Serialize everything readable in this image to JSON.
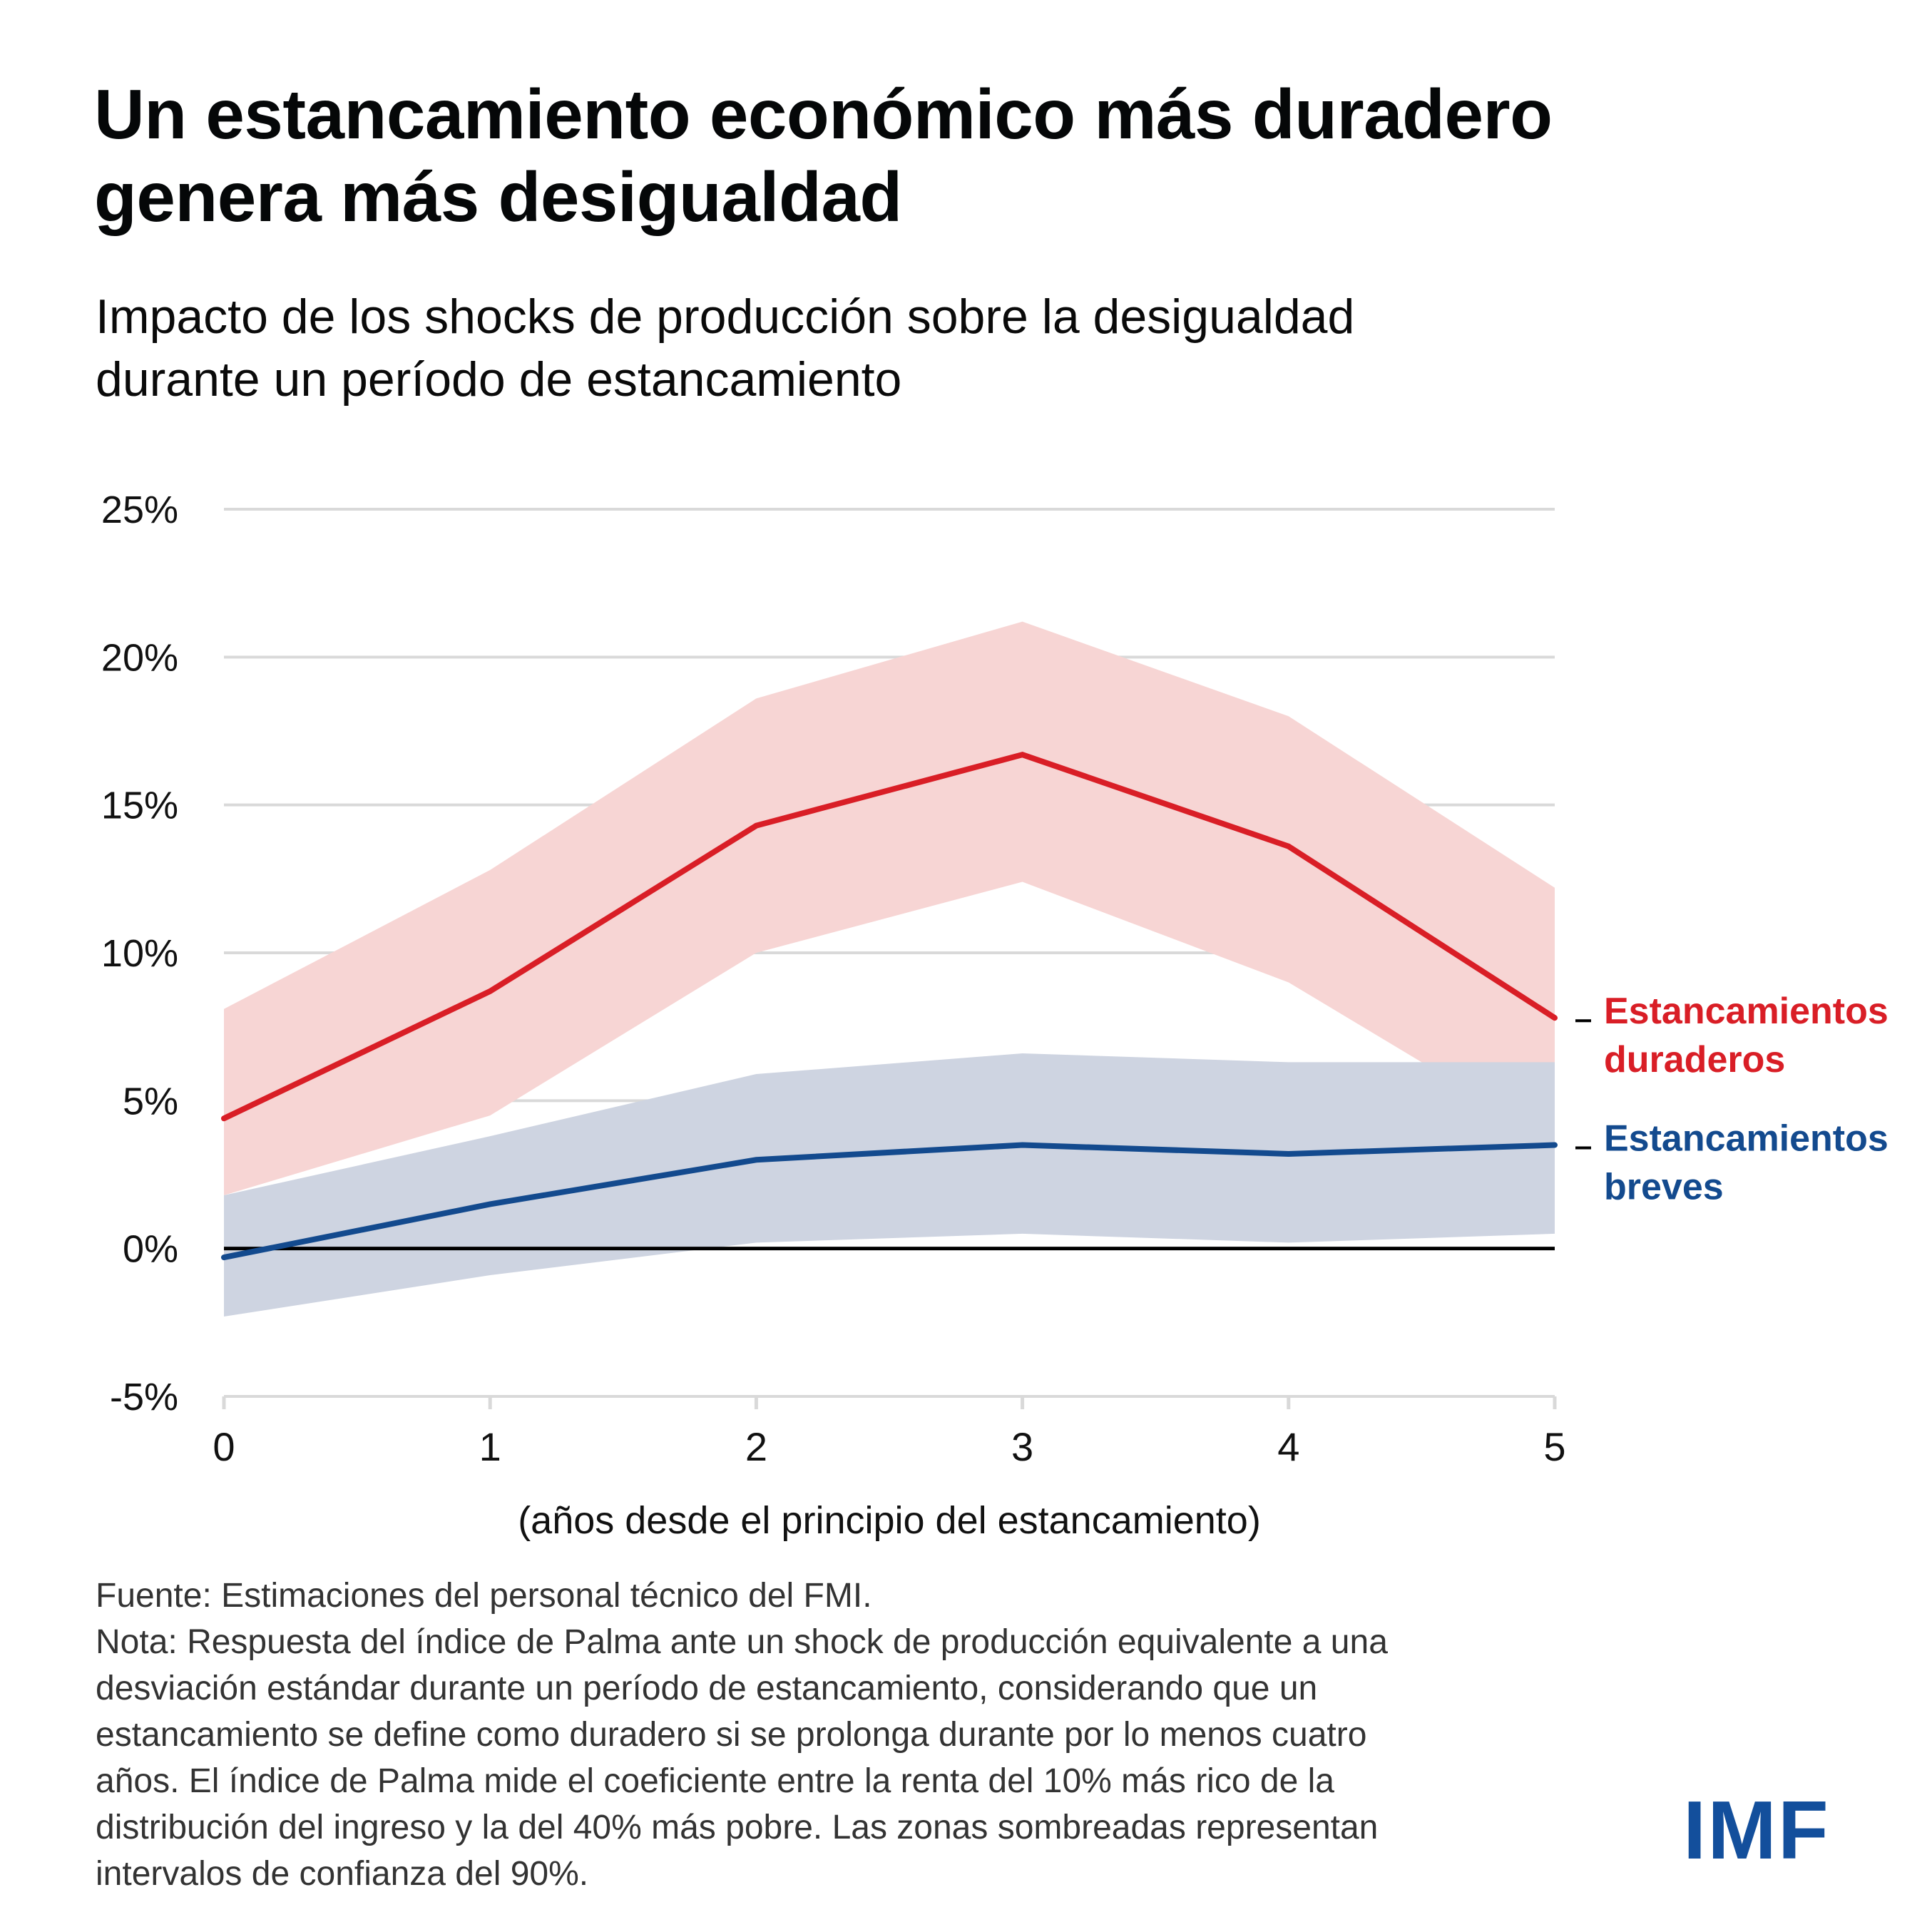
{
  "header": {
    "title_lines": [
      "Un estancamiento económico más duradero",
      "genera más desigualdad"
    ],
    "subtitle_lines": [
      "Impacto de los shocks de producción sobre la desigualdad",
      "durante un período de estancamiento"
    ]
  },
  "colors": {
    "long_line": "#D91E26",
    "long_band": "#F7D5D4",
    "short_line": "#134A8E",
    "short_band": "#CED4E1",
    "grid": "#D9D9D9",
    "zero_line": "#000000",
    "logo": "#134F9C"
  },
  "chart_data": {
    "type": "line",
    "title": "Impacto de los shocks de producción sobre la desigualdad durante un período de estancamiento",
    "xlabel": "(años desde el principio del estancamiento)",
    "ylabel": "",
    "x": [
      0,
      1,
      2,
      3,
      4,
      5
    ],
    "xlim": [
      0,
      5
    ],
    "ylim": [
      -5,
      25
    ],
    "x_ticks": [
      "0",
      "1",
      "2",
      "3",
      "4",
      "5"
    ],
    "y_ticks": [
      {
        "value": 25,
        "label": "25%"
      },
      {
        "value": 20,
        "label": "20%"
      },
      {
        "value": 15,
        "label": "15%"
      },
      {
        "value": 10,
        "label": "10%"
      },
      {
        "value": 5,
        "label": "5%"
      },
      {
        "value": 0,
        "label": "0%"
      },
      {
        "value": -5,
        "label": "-5%"
      }
    ],
    "grid": true,
    "legend_placement": "right (direct labels at line ends)",
    "series": [
      {
        "name": "Estancamientos duraderos",
        "label_lines": [
          "Estancamientos",
          "duraderos"
        ],
        "values": [
          4.4,
          8.7,
          14.3,
          16.7,
          13.6,
          7.8
        ],
        "ci_upper": [
          8.1,
          12.8,
          18.6,
          21.2,
          18.0,
          12.2
        ],
        "ci_lower": [
          1.8,
          4.5,
          10.0,
          12.4,
          9.0,
          3.6
        ]
      },
      {
        "name": "Estancamientos breves",
        "label_lines": [
          "Estancamientos",
          "breves"
        ],
        "values": [
          -0.3,
          1.5,
          3.0,
          3.5,
          3.2,
          3.5
        ],
        "ci_upper": [
          1.8,
          3.8,
          5.9,
          6.6,
          6.3,
          6.3
        ],
        "ci_lower": [
          -2.3,
          -0.9,
          0.2,
          0.5,
          0.2,
          0.5
        ]
      }
    ],
    "confidence_interval": "90%"
  },
  "footer": {
    "lines": [
      "Fuente: Estimaciones del personal técnico del FMI.",
      "Nota: Respuesta del índice de Palma ante un shock de producción equivalente a una",
      "desviación estándar durante un período de estancamiento, considerando que un",
      "estancamiento se define como duradero si se prolonga durante por lo menos cuatro",
      "años. El índice de Palma mide el coeficiente entre la renta del 10% más rico de la",
      "distribución del ingreso y la del 40% más pobre. Las zonas sombreadas representan",
      "intervalos de confianza del 90%."
    ]
  },
  "logo": {
    "text": "IMF"
  }
}
